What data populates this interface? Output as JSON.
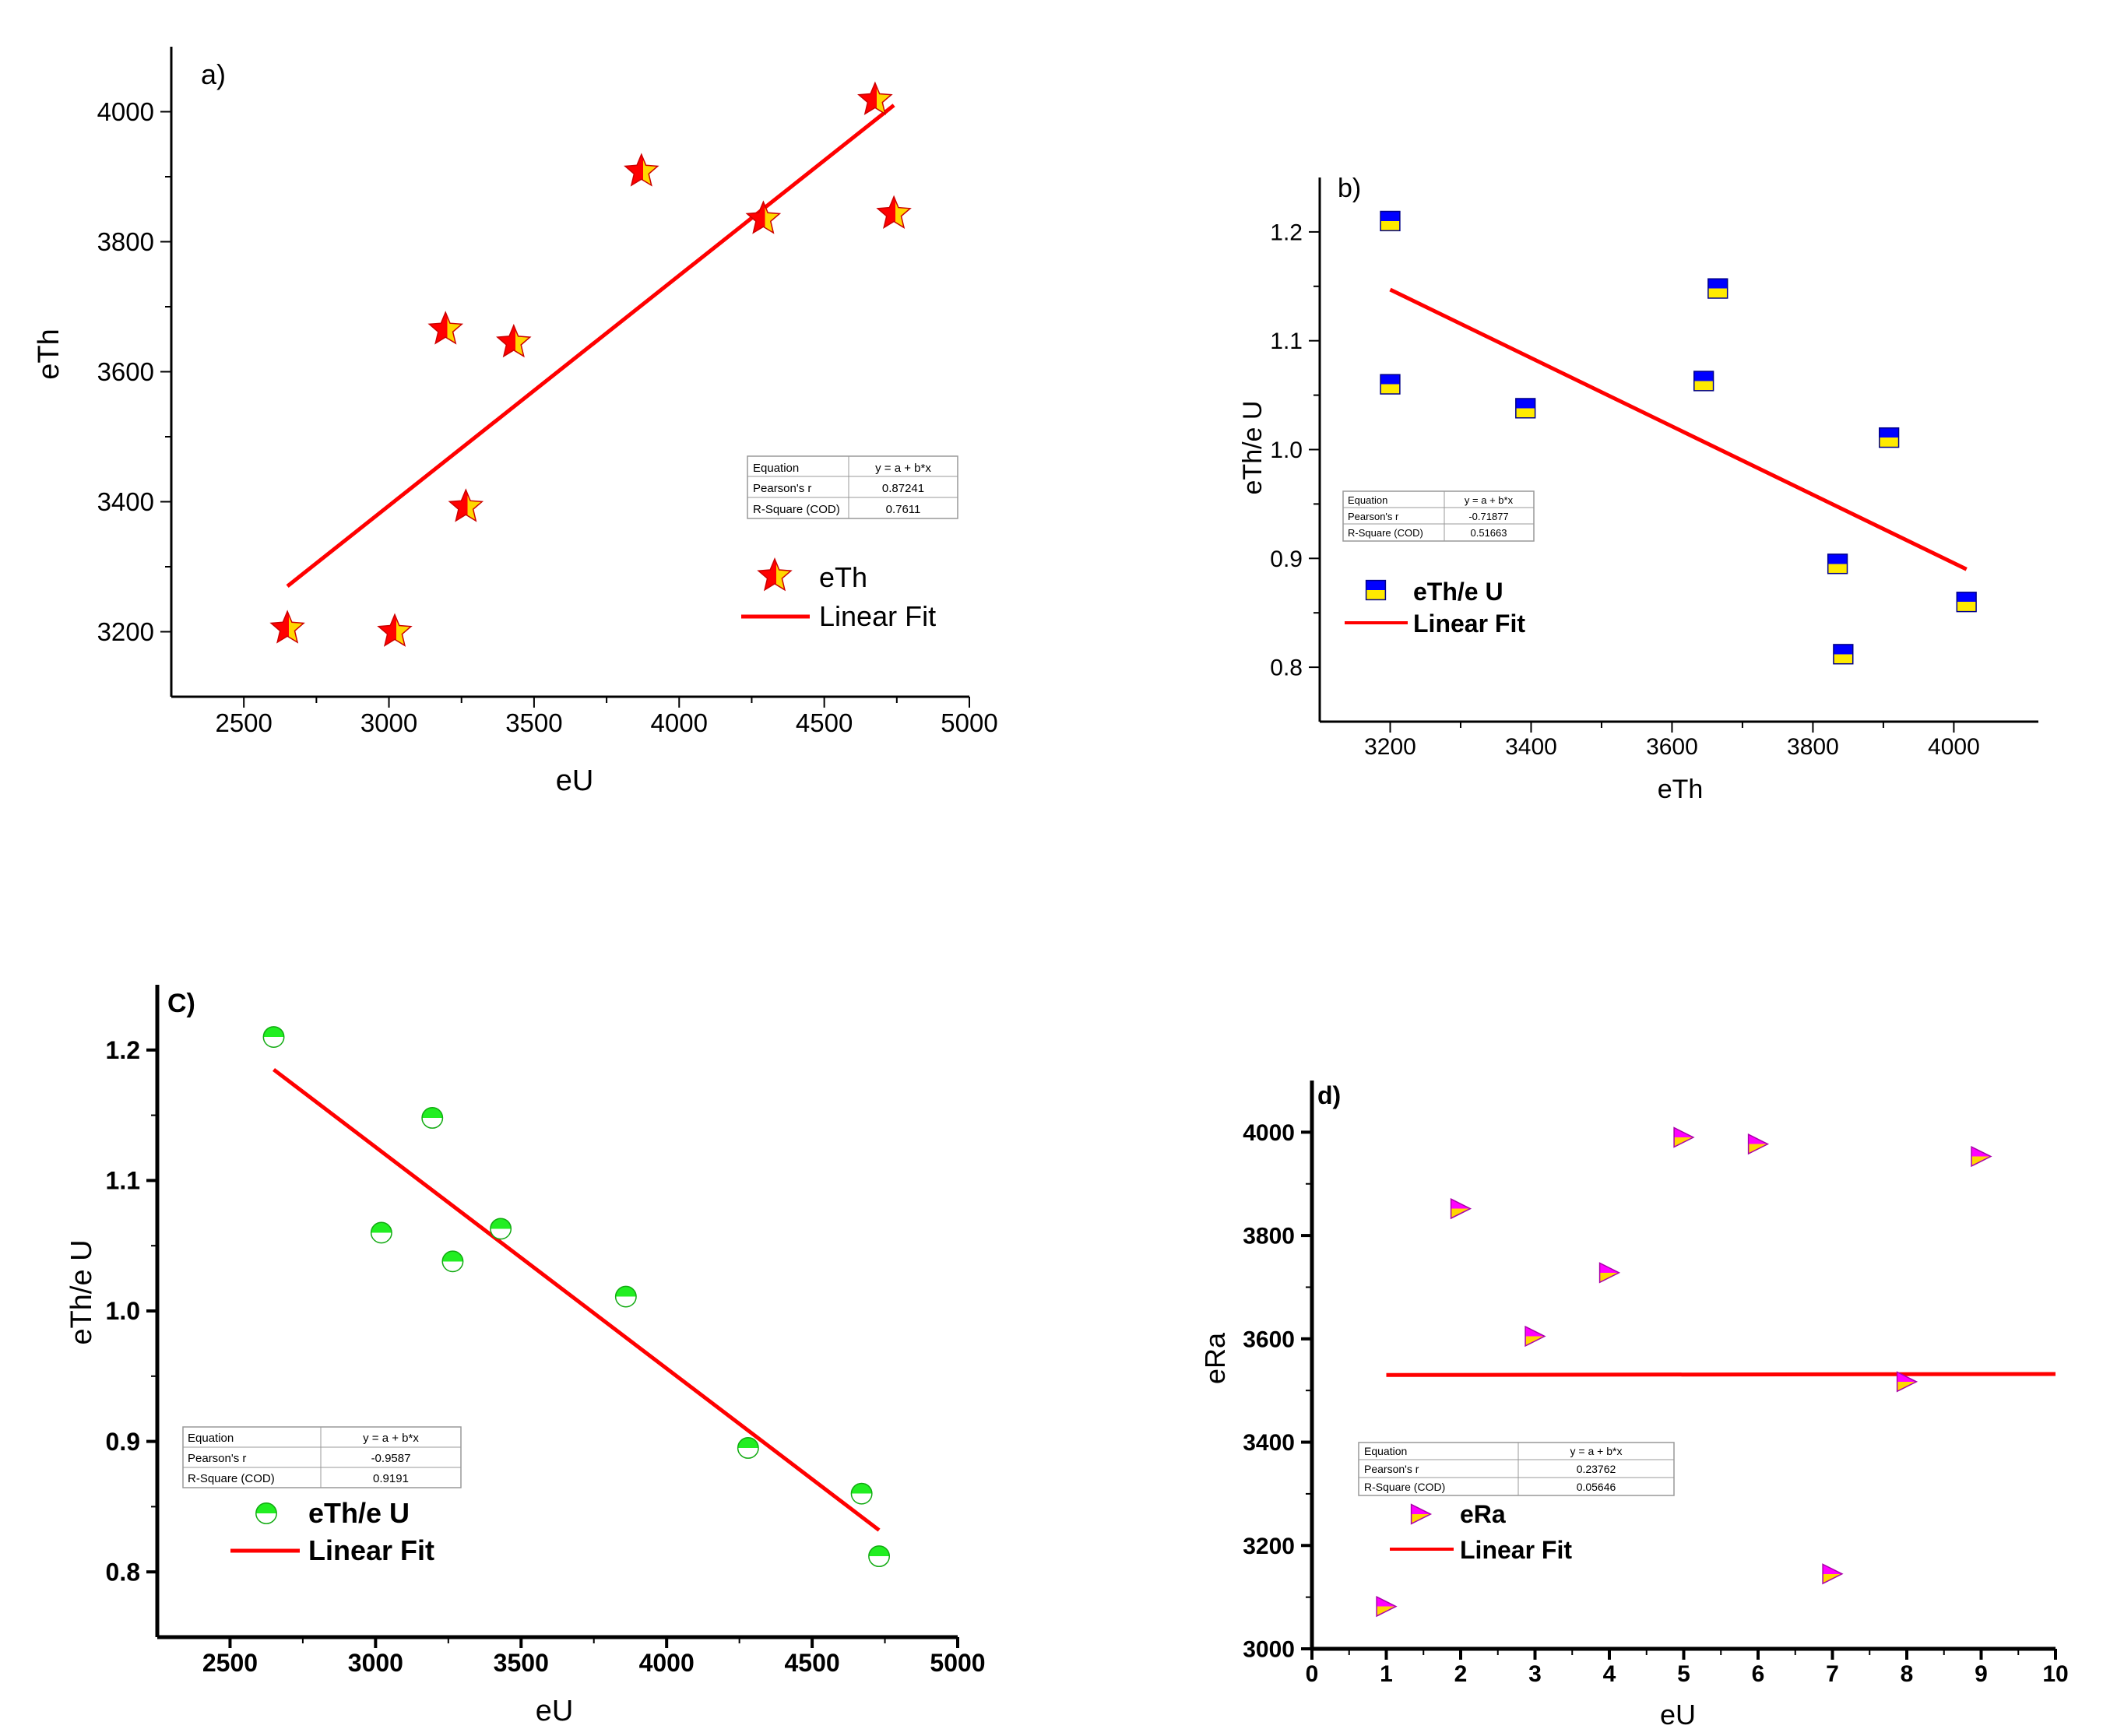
{
  "colors": {
    "fit": "#ff0000",
    "axis": "#000000",
    "star_fill": "#ff0000",
    "star_inner": "#ffd700",
    "square_top": "#0000ff",
    "square_bottom": "#ffea00",
    "circle_top": "#22ee22",
    "circle_bottom": "#ffffff",
    "tri_top": "#ff00ff",
    "tri_bottom": "#ffd700"
  },
  "chart_data": [
    {
      "id": "a",
      "type": "scatter",
      "panel_label": "a)",
      "xlabel": "eU",
      "ylabel": "eTh",
      "xlim": [
        2250,
        5000
      ],
      "ylim": [
        3100,
        4100
      ],
      "xticks": [
        2500,
        3000,
        3500,
        4000,
        4500,
        5000
      ],
      "xtick_labels": [
        "2500",
        "3000",
        "3500",
        "4000",
        "4500",
        "5000"
      ],
      "yticks": [
        3200,
        3400,
        3600,
        3800,
        4000
      ],
      "ytick_labels": [
        "3200",
        "3400",
        "3600",
        "3800",
        "4000"
      ],
      "marker": "star",
      "points": [
        [
          2650,
          3205
        ],
        [
          3020,
          3200
        ],
        [
          3195,
          3665
        ],
        [
          3265,
          3392
        ],
        [
          3430,
          3645
        ],
        [
          3870,
          3908
        ],
        [
          4290,
          3835
        ],
        [
          4675,
          4018
        ],
        [
          4740,
          3843
        ]
      ],
      "fit": {
        "x": [
          2650,
          4740
        ],
        "y": [
          3270,
          4010
        ]
      },
      "stats": {
        "rows": [
          [
            "Equation",
            "y = a + b*x"
          ],
          [
            "Pearson's r",
            "0.87241"
          ],
          [
            "R-Square (COD)",
            "0.7611"
          ]
        ]
      },
      "legend": {
        "series": "eTh",
        "fit": "Linear Fit"
      }
    },
    {
      "id": "b",
      "type": "scatter",
      "panel_label": "b)",
      "xlabel": "eTh",
      "ylabel": "eTh/e U",
      "xlim": [
        3100,
        4120
      ],
      "ylim": [
        0.75,
        1.25
      ],
      "xticks": [
        3200,
        3400,
        3600,
        3800,
        4000
      ],
      "xtick_labels": [
        "3200",
        "3400",
        "3600",
        "3800",
        "4000"
      ],
      "yticks": [
        0.8,
        0.9,
        1.0,
        1.1,
        1.2
      ],
      "ytick_labels": [
        "0.8",
        "0.9",
        "1.0",
        "1.1",
        "1.2"
      ],
      "marker": "square",
      "points": [
        [
          3200,
          1.21
        ],
        [
          3200,
          1.06
        ],
        [
          3392,
          1.038
        ],
        [
          3645,
          1.063
        ],
        [
          3665,
          1.148
        ],
        [
          3835,
          0.895
        ],
        [
          3843,
          0.812
        ],
        [
          3908,
          1.011
        ],
        [
          4018,
          0.86
        ]
      ],
      "fit": {
        "x": [
          3200,
          4018
        ],
        "y": [
          1.147,
          0.89
        ]
      },
      "stats": {
        "rows": [
          [
            "Equation",
            "y = a + b*x"
          ],
          [
            "Pearson's r",
            "-0.71877"
          ],
          [
            "R-Square (COD)",
            "0.51663"
          ]
        ]
      },
      "legend": {
        "series": "eTh/e U",
        "fit": "Linear Fit"
      }
    },
    {
      "id": "c",
      "type": "scatter",
      "panel_label": "C)",
      "xlabel": "eU",
      "ylabel": "eTh/e U",
      "xlim": [
        2250,
        5000
      ],
      "ylim": [
        0.75,
        1.25
      ],
      "xticks": [
        2500,
        3000,
        3500,
        4000,
        4500,
        5000
      ],
      "xtick_labels": [
        "2500",
        "3000",
        "3500",
        "4000",
        "4500",
        "5000"
      ],
      "yticks": [
        0.8,
        0.9,
        1.0,
        1.1,
        1.2
      ],
      "ytick_labels": [
        "0.8",
        "0.9",
        "1.0",
        "1.1",
        "1.2"
      ],
      "marker": "circle",
      "points": [
        [
          2650,
          1.21
        ],
        [
          3020,
          1.06
        ],
        [
          3195,
          1.148
        ],
        [
          3265,
          1.038
        ],
        [
          3430,
          1.063
        ],
        [
          3860,
          1.011
        ],
        [
          4280,
          0.895
        ],
        [
          4670,
          0.86
        ],
        [
          4730,
          0.812
        ]
      ],
      "fit": {
        "x": [
          2650,
          4730
        ],
        "y": [
          1.185,
          0.832
        ]
      },
      "stats": {
        "rows": [
          [
            "Equation",
            "y = a + b*x"
          ],
          [
            "Pearson's r",
            "-0.9587"
          ],
          [
            "R-Square (COD)",
            "0.9191"
          ]
        ]
      },
      "legend": {
        "series": "eTh/e U",
        "fit": "Linear Fit"
      }
    },
    {
      "id": "d",
      "type": "scatter",
      "panel_label": "d)",
      "xlabel": "eU",
      "ylabel": "eRa",
      "xlim": [
        0,
        10
      ],
      "ylim": [
        3000,
        4100
      ],
      "xticks": [
        0,
        1,
        2,
        3,
        4,
        5,
        6,
        7,
        8,
        9,
        10
      ],
      "xtick_labels": [
        "0",
        "1",
        "2",
        "3",
        "4",
        "5",
        "6",
        "7",
        "8",
        "9",
        "10"
      ],
      "yticks": [
        3000,
        3200,
        3400,
        3600,
        3800,
        4000
      ],
      "ytick_labels": [
        "3000",
        "3200",
        "3400",
        "3600",
        "3800",
        "4000"
      ],
      "marker": "triangle",
      "points": [
        [
          1,
          3082
        ],
        [
          2,
          3852
        ],
        [
          3,
          3605
        ],
        [
          4,
          3728
        ],
        [
          5,
          3990
        ],
        [
          6,
          3977
        ],
        [
          7,
          3145
        ],
        [
          8,
          3517
        ],
        [
          9,
          3953
        ]
      ],
      "fit": {
        "x": [
          1,
          10
        ],
        "y": [
          3530,
          3532
        ]
      },
      "stats": {
        "rows": [
          [
            "Equation",
            "y = a + b*x"
          ],
          [
            "Pearson's r",
            "0.23762"
          ],
          [
            "R-Square (COD)",
            "0.05646"
          ]
        ]
      },
      "legend": {
        "series": "eRa",
        "fit": "Linear Fit"
      }
    }
  ]
}
